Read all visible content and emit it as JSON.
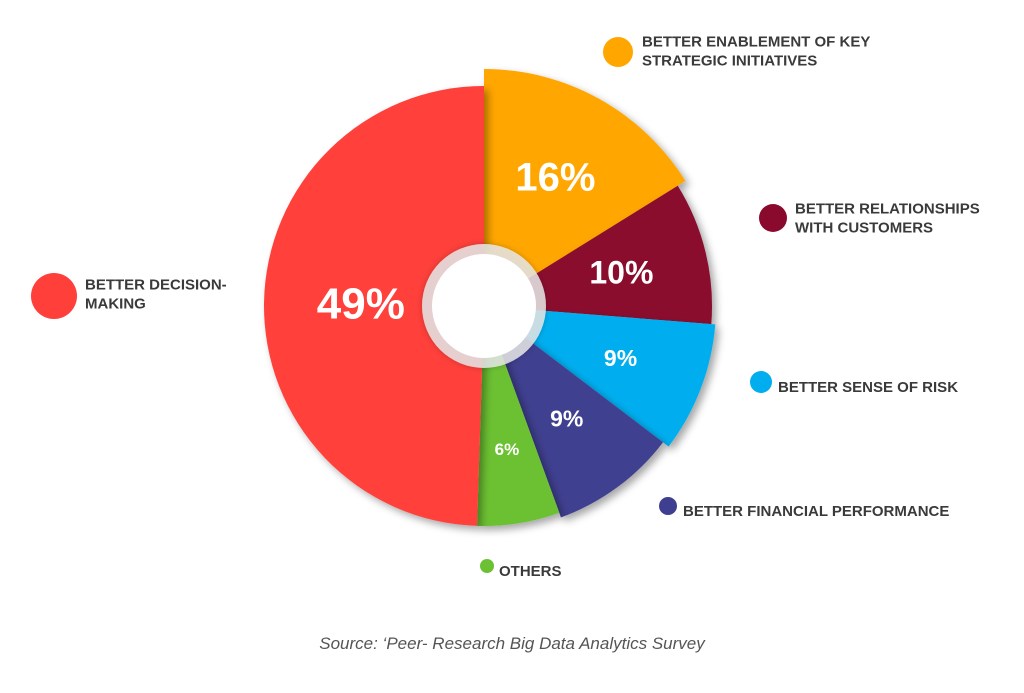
{
  "chart_data": {
    "type": "pie",
    "categories": [
      "BETTER ENABLEMENT OF KEY STRATEGIC INITIATIVES",
      "BETTER RELATIONSHIPS WITH CUSTOMERS",
      "BETTER SENSE OF RISK",
      "BETTER FINANCIAL PERFORMANCE",
      "OTHERS",
      "BETTER DECISION-MAKING"
    ],
    "values": [
      16,
      10,
      9,
      9,
      6,
      49
    ],
    "value_labels": [
      "16%",
      "10%",
      "9%",
      "9%",
      "6%",
      "49%"
    ],
    "legend_lines": [
      [
        "BETTER ENABLEMENT OF KEY",
        "STRATEGIC INITIATIVES"
      ],
      [
        "BETTER RELATIONSHIPS",
        "WITH CUSTOMERS"
      ],
      [
        "BETTER SENSE OF RISK"
      ],
      [
        "BETTER FINANCIAL PERFORMANCE"
      ],
      [
        "OTHERS"
      ],
      [
        "BETTER DECISION-",
        "MAKING"
      ]
    ],
    "colors": [
      "#FFA600",
      "#8A0A2E",
      "#00AEEF",
      "#3F3F91",
      "#6CC133",
      "#FF3F3A"
    ],
    "legend_placement": "around",
    "grid": false
  },
  "source": "Source: ‘Peer- Research Big Data Analytics Survey"
}
